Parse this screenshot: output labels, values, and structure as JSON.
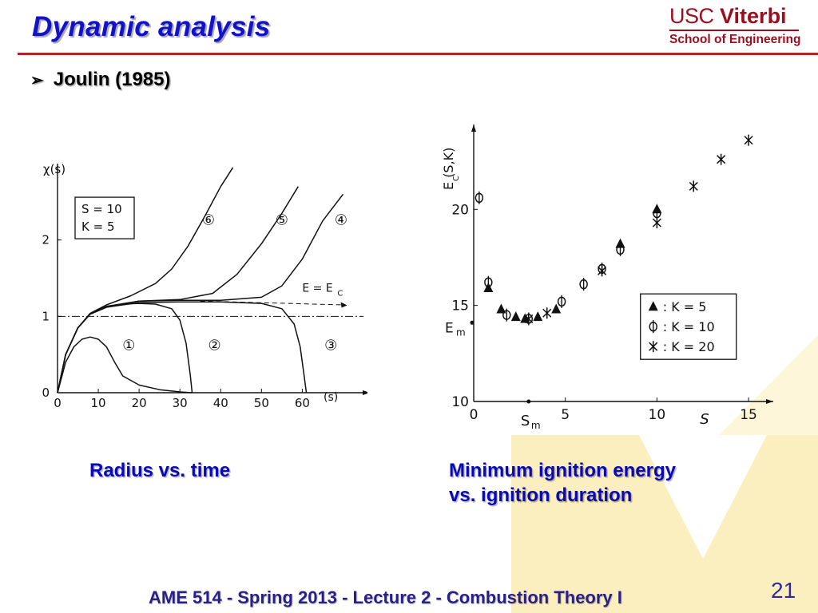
{
  "slide": {
    "title": "Dynamic analysis",
    "bullet": "Joulin (1985)",
    "bullet_icon": "arrow-bullet-icon",
    "logo": {
      "top_usc": "USC",
      "top_viterbi": "Viterbi",
      "bottom": "School of Engineering",
      "color": "#9a0e1d"
    },
    "caption_left": "Radius vs. time",
    "caption_right_line1": "Minimum ignition energy",
    "caption_right_line2": "vs. ignition duration",
    "footer": "AME 514 - Spring 2013 - Lecture 2 - Combustion Theory I",
    "page_number": "21",
    "accent_title": "#1212c8",
    "accent_rule": "#b8202a",
    "background_v_color": "#fcedb8"
  },
  "chart_data": [
    {
      "type": "line",
      "xlabel": "(s)",
      "ylabel": "χ(s)",
      "xlim": [
        0,
        75
      ],
      "ylim": [
        0,
        3
      ],
      "x_ticks": [
        "0",
        "10",
        "20",
        "30",
        "40",
        "50",
        "60"
      ],
      "y_ticks": [
        "0",
        "1",
        "2"
      ],
      "params_box": [
        "S = 10",
        "K = 5"
      ],
      "reference_line": {
        "y": 1,
        "style": "dash-dot"
      },
      "asymptote": {
        "label": "E = E",
        "subscript": "C",
        "y": 1.2
      },
      "series": [
        {
          "name": "1",
          "x": [
            0,
            2,
            4,
            6,
            8,
            10,
            12,
            14,
            16,
            20,
            25,
            30,
            33
          ],
          "y": [
            0,
            0.4,
            0.6,
            0.7,
            0.73,
            0.7,
            0.6,
            0.4,
            0.22,
            0.1,
            0.04,
            0.01,
            0
          ]
        },
        {
          "name": "2",
          "x": [
            0,
            2,
            5,
            8,
            12,
            16,
            20,
            24,
            28,
            30,
            31.5,
            32.5,
            33
          ],
          "y": [
            0,
            0.5,
            0.85,
            1.03,
            1.12,
            1.16,
            1.17,
            1.16,
            1.1,
            0.95,
            0.65,
            0.25,
            0
          ]
        },
        {
          "name": "3",
          "x": [
            0,
            2,
            5,
            8,
            12,
            20,
            30,
            40,
            50,
            55,
            58,
            59.5,
            60.5,
            61
          ],
          "y": [
            0,
            0.5,
            0.85,
            1.03,
            1.12,
            1.18,
            1.19,
            1.19,
            1.17,
            1.1,
            0.9,
            0.6,
            0.2,
            0
          ]
        },
        {
          "name": "4",
          "x": [
            0,
            2,
            5,
            8,
            12,
            20,
            30,
            40,
            50,
            55,
            60,
            65,
            70
          ],
          "y": [
            0,
            0.5,
            0.85,
            1.03,
            1.13,
            1.2,
            1.21,
            1.21,
            1.25,
            1.4,
            1.75,
            2.25,
            2.6
          ]
        },
        {
          "name": "5",
          "x": [
            0,
            2,
            5,
            8,
            12,
            20,
            30,
            38,
            44,
            50,
            55,
            59
          ],
          "y": [
            0,
            0.5,
            0.85,
            1.03,
            1.13,
            1.2,
            1.22,
            1.3,
            1.55,
            1.95,
            2.35,
            2.7
          ]
        },
        {
          "name": "6",
          "x": [
            0,
            2,
            5,
            8,
            12,
            18,
            24,
            28,
            32,
            36,
            40,
            43
          ],
          "y": [
            0,
            0.5,
            0.85,
            1.04,
            1.15,
            1.27,
            1.43,
            1.62,
            1.92,
            2.3,
            2.7,
            2.95
          ]
        }
      ],
      "curve_labels": [
        "①",
        "②",
        "③",
        "④",
        "⑤",
        "⑥"
      ]
    },
    {
      "type": "scatter",
      "xlabel": "S",
      "ylabel": "E (S,K)",
      "ylabel_subscript": "C",
      "xlim": [
        0,
        16
      ],
      "ylim": [
        10,
        24
      ],
      "x_ticks": [
        "0",
        "5",
        "10",
        "15"
      ],
      "y_ticks": [
        "10",
        "15",
        "20"
      ],
      "annotations": {
        "x_marker": "S",
        "x_marker_sub": "m",
        "x_marker_value": 3,
        "y_marker": "E",
        "y_marker_sub": "m",
        "y_marker_value": 14.1
      },
      "legend": [
        {
          "symbol": "▲",
          "label": ": K  = 5"
        },
        {
          "symbol": "Φ",
          "label": ": K  = 10"
        },
        {
          "symbol": "✱",
          "label": ": K  = 20"
        }
      ],
      "legend_position": "bottom-right",
      "series": [
        {
          "name": "K = 5",
          "symbol": "triangle",
          "x": [
            0.8,
            1.5,
            2.3,
            2.8,
            3.5,
            4.5,
            8,
            10
          ],
          "y": [
            15.9,
            14.8,
            14.4,
            14.3,
            14.4,
            14.8,
            18.2,
            20
          ]
        },
        {
          "name": "K = 10",
          "symbol": "phi",
          "x": [
            0.3,
            0.8,
            1.8,
            3,
            4.8,
            6,
            7,
            8,
            10
          ],
          "y": [
            20.6,
            16.2,
            14.5,
            14.3,
            15.2,
            16.1,
            16.9,
            17.9,
            19.8
          ]
        },
        {
          "name": "K = 20",
          "symbol": "asterisk",
          "x": [
            3,
            4,
            7,
            10,
            12,
            13.5,
            15
          ],
          "y": [
            14.3,
            14.6,
            16.8,
            19.3,
            21.2,
            22.6,
            23.6
          ]
        }
      ]
    }
  ]
}
